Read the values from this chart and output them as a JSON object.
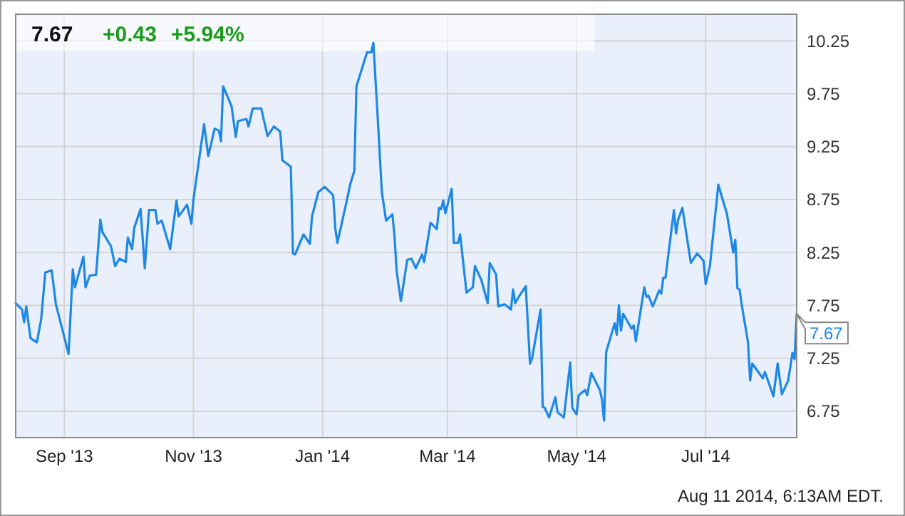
{
  "chart_data": {
    "type": "line",
    "title": "7.67",
    "x": [
      "2013-08-09",
      "2013-08-12",
      "2013-08-13",
      "2013-08-14",
      "2013-08-16",
      "2013-08-19",
      "2013-08-21",
      "2013-08-23",
      "2013-08-26",
      "2013-08-28",
      "2013-09-03",
      "2013-09-05",
      "2013-09-06",
      "2013-09-10",
      "2013-09-11",
      "2013-09-13",
      "2013-09-16",
      "2013-09-18",
      "2013-09-19",
      "2013-09-23",
      "2013-09-25",
      "2013-09-27",
      "2013-09-30",
      "2013-10-01",
      "2013-10-03",
      "2013-10-04",
      "2013-10-07",
      "2013-10-09",
      "2013-10-11",
      "2013-10-14",
      "2013-10-15",
      "2013-10-17",
      "2013-10-21",
      "2013-10-24",
      "2013-10-25",
      "2013-10-29",
      "2013-10-31",
      "2013-11-01",
      "2013-11-06",
      "2013-11-08",
      "2013-11-11",
      "2013-11-13",
      "2013-11-14",
      "2013-11-15",
      "2013-11-19",
      "2013-11-21",
      "2013-11-22",
      "2013-11-26",
      "2013-11-27",
      "2013-11-29",
      "2013-12-03",
      "2013-12-06",
      "2013-12-09",
      "2013-12-12",
      "2013-12-13",
      "2013-12-17",
      "2013-12-18",
      "2013-12-19",
      "2013-12-23",
      "2013-12-26",
      "2013-12-27",
      "2013-12-30",
      "2014-01-02",
      "2014-01-06",
      "2014-01-07",
      "2014-01-08",
      "2014-01-10",
      "2014-01-13",
      "2014-01-14",
      "2014-01-16",
      "2014-01-17",
      "2014-01-22",
      "2014-01-24",
      "2014-01-25",
      "2014-01-27",
      "2014-01-29",
      "2014-01-31",
      "2014-02-03",
      "2014-02-04",
      "2014-02-05",
      "2014-02-07",
      "2014-02-10",
      "2014-02-12",
      "2014-02-14",
      "2014-02-17",
      "2014-02-18",
      "2014-02-21",
      "2014-02-24",
      "2014-02-25",
      "2014-02-26",
      "2014-02-27",
      "2014-02-28",
      "2014-03-03",
      "2014-03-04",
      "2014-03-06",
      "2014-03-07",
      "2014-03-10",
      "2014-03-13",
      "2014-03-14",
      "2014-03-17",
      "2014-03-20",
      "2014-03-21",
      "2014-03-24",
      "2014-03-25",
      "2014-03-28",
      "2014-03-31",
      "2014-04-01",
      "2014-04-02",
      "2014-04-04",
      "2014-04-07",
      "2014-04-09",
      "2014-04-10",
      "2014-04-14",
      "2014-04-15",
      "2014-04-16",
      "2014-04-18",
      "2014-04-21",
      "2014-04-22",
      "2014-04-25",
      "2014-04-28",
      "2014-04-29",
      "2014-05-01",
      "2014-05-02",
      "2014-05-05",
      "2014-05-06",
      "2014-05-08",
      "2014-05-12",
      "2014-05-13",
      "2014-05-14",
      "2014-05-15",
      "2014-05-19",
      "2014-05-20",
      "2014-05-21",
      "2014-05-22",
      "2014-05-23",
      "2014-05-27",
      "2014-05-28",
      "2014-05-29",
      "2014-06-02",
      "2014-06-03",
      "2014-06-04",
      "2014-06-06",
      "2014-06-09",
      "2014-06-10",
      "2014-06-11",
      "2014-06-12",
      "2014-06-16",
      "2014-06-17",
      "2014-06-18",
      "2014-06-20",
      "2014-06-24",
      "2014-06-27",
      "2014-06-30",
      "2014-07-01",
      "2014-07-03",
      "2014-07-07",
      "2014-07-09",
      "2014-07-11",
      "2014-07-14",
      "2014-07-15",
      "2014-07-16",
      "2014-07-17",
      "2014-07-18",
      "2014-07-21",
      "2014-07-22",
      "2014-07-23",
      "2014-07-28",
      "2014-07-29",
      "2014-08-02",
      "2014-08-04",
      "2014-08-06",
      "2014-08-09",
      "2014-08-11",
      "2014-08-12",
      "2014-08-13"
    ],
    "series": [
      {
        "color": "#1e88e5",
        "values": [
          7.77,
          7.71,
          7.59,
          7.74,
          7.44,
          7.4,
          7.61,
          8.06,
          8.08,
          7.76,
          7.29,
          8.09,
          7.92,
          8.21,
          7.92,
          8.03,
          8.04,
          8.56,
          8.44,
          8.31,
          8.12,
          8.19,
          8.16,
          8.39,
          8.28,
          8.48,
          8.66,
          8.1,
          8.65,
          8.65,
          8.52,
          8.55,
          8.28,
          8.74,
          8.59,
          8.7,
          8.52,
          8.75,
          9.46,
          9.16,
          9.42,
          9.4,
          9.3,
          9.82,
          9.63,
          9.34,
          9.49,
          9.51,
          9.44,
          9.61,
          9.61,
          9.35,
          9.44,
          9.39,
          9.12,
          9.06,
          8.24,
          8.23,
          8.42,
          8.33,
          8.59,
          8.82,
          8.87,
          8.79,
          8.48,
          8.34,
          8.52,
          8.79,
          8.89,
          9.02,
          9.82,
          10.14,
          10.14,
          10.23,
          9.54,
          8.82,
          8.55,
          8.61,
          8.4,
          8.07,
          7.79,
          8.18,
          8.19,
          8.1,
          8.23,
          8.16,
          8.53,
          8.47,
          8.67,
          8.66,
          8.74,
          8.62,
          8.85,
          8.34,
          8.34,
          8.42,
          7.87,
          7.92,
          8.12,
          7.99,
          7.77,
          8.15,
          8.04,
          7.74,
          7.76,
          7.71,
          7.9,
          7.77,
          7.84,
          7.93,
          7.2,
          7.25,
          7.71,
          6.79,
          6.78,
          6.69,
          6.88,
          6.74,
          6.69,
          7.21,
          6.78,
          6.72,
          6.9,
          6.95,
          6.9,
          7.11,
          6.95,
          6.86,
          6.66,
          7.31,
          7.58,
          7.47,
          7.75,
          7.51,
          7.67,
          7.53,
          7.56,
          7.41,
          7.92,
          7.83,
          7.84,
          7.74,
          7.89,
          7.86,
          8.01,
          8.01,
          8.65,
          8.43,
          8.56,
          8.67,
          8.15,
          8.24,
          8.17,
          7.95,
          8.12,
          8.89,
          8.75,
          8.62,
          8.25,
          8.37,
          7.91,
          7.9,
          7.76,
          7.4,
          7.04,
          7.2,
          7.06,
          7.12,
          6.89,
          7.2,
          6.91,
          7.04,
          7.3,
          7.24,
          7.67
        ]
      }
    ],
    "xlim": [
      "2013-08-09",
      "2014-08-13"
    ],
    "xticks": [
      {
        "value": "2013-09-01",
        "label": "Sep '13"
      },
      {
        "value": "2013-11-01",
        "label": "Nov '13"
      },
      {
        "value": "2014-01-01",
        "label": "Jan '14"
      },
      {
        "value": "2014-03-01",
        "label": "Mar '14"
      },
      {
        "value": "2014-05-01",
        "label": "May '14"
      },
      {
        "value": "2014-07-01",
        "label": "Jul '14"
      }
    ],
    "ylim": [
      6.5,
      10.5
    ],
    "yticks": [
      6.75,
      7.25,
      7.75,
      8.25,
      8.75,
      9.25,
      9.75,
      10.25
    ],
    "grid": true,
    "marker": "none",
    "line_style": "solid",
    "annotations": [
      "+0.43",
      "+5.94%",
      "Aug 11 2014, 6:13AM EDT.",
      {
        "text": "7.67",
        "x": "2014-08-13",
        "y": 7.67
      }
    ]
  }
}
